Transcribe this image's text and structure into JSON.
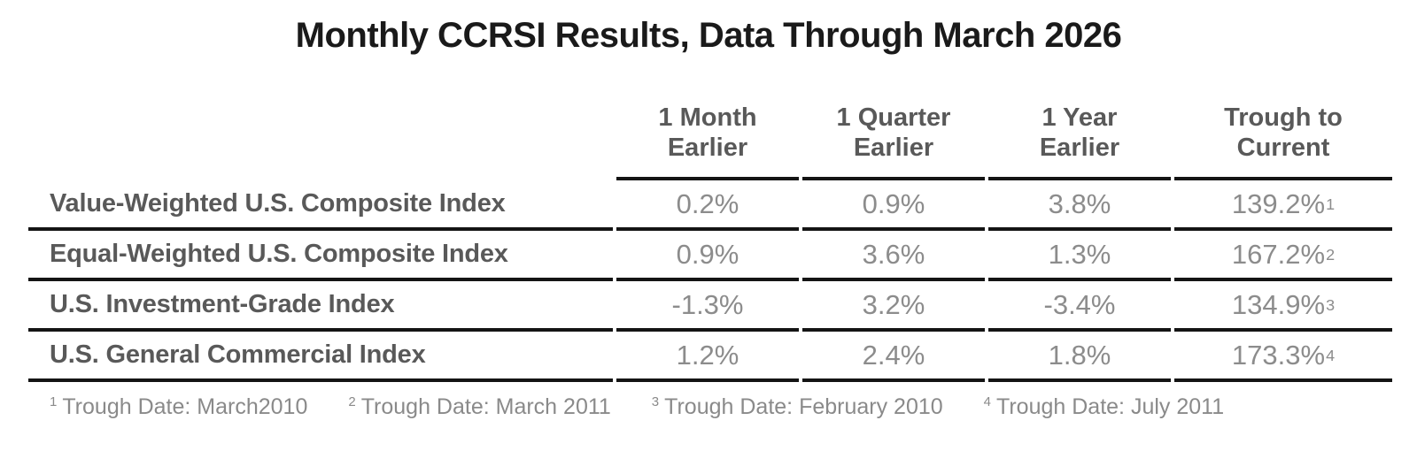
{
  "title": "Monthly CCRSI Results, Data Through March 2026",
  "colors": {
    "title_text": "#1a1a1a",
    "header_and_label_text": "#595959",
    "value_text": "#8c8c8c",
    "footnote_text": "#8a8a8a",
    "rule_lines": "#141414",
    "background": "#ffffff"
  },
  "chart_data": {
    "type": "table",
    "title": "Monthly CCRSI Results, Data Through March 2026",
    "columns": [
      {
        "label": "1 Month Earlier",
        "line1": "1 Month",
        "line2": "Earlier"
      },
      {
        "label": "1 Quarter Earlier",
        "line1": "1 Quarter",
        "line2": "Earlier"
      },
      {
        "label": "1 Year Earlier",
        "line1": "1 Year",
        "line2": "Earlier"
      },
      {
        "label": "Trough to Current",
        "line1": "Trough to",
        "line2": "Current"
      }
    ],
    "rows": [
      {
        "label": "Value-Weighted U.S. Composite Index",
        "values": [
          "0.2%",
          "0.9%",
          "3.8%"
        ],
        "trough_to_current": "139.2%",
        "footnote_ref": "1"
      },
      {
        "label": "Equal-Weighted U.S. Composite Index",
        "values": [
          "0.9%",
          "3.6%",
          "1.3%"
        ],
        "trough_to_current": "167.2%",
        "footnote_ref": "2"
      },
      {
        "label": "U.S. Investment-Grade Index",
        "values": [
          "-1.3%",
          "3.2%",
          "-3.4%"
        ],
        "trough_to_current": "134.9%",
        "footnote_ref": "3"
      },
      {
        "label": "U.S. General Commercial Index",
        "values": [
          "1.2%",
          "2.4%",
          "1.8%"
        ],
        "trough_to_current": "173.3%",
        "footnote_ref": "4"
      }
    ],
    "footnotes": [
      {
        "ref": "1",
        "text": "Trough Date: March2010"
      },
      {
        "ref": "2",
        "text": "Trough Date: March 2011"
      },
      {
        "ref": "3",
        "text": "Trough Date: February 2010"
      },
      {
        "ref": "4",
        "text": "Trough Date: July 2011"
      }
    ]
  }
}
